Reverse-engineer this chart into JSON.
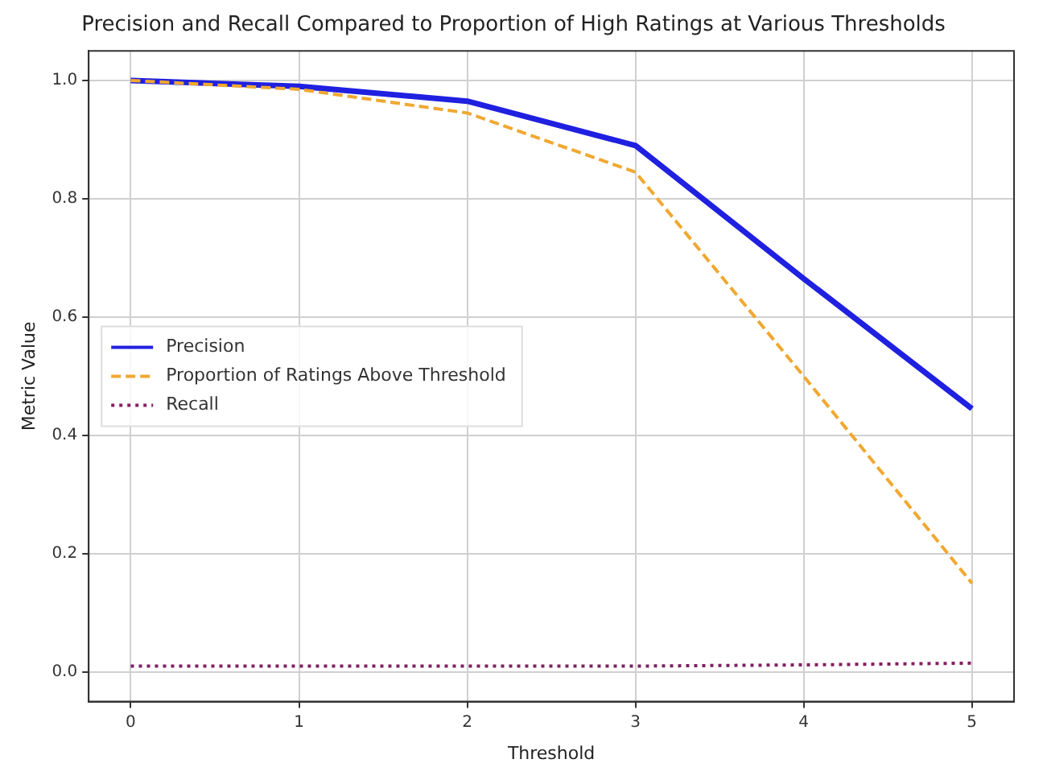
{
  "chart_data": {
    "type": "line",
    "title": "Precision and Recall Compared to Proportion of High Ratings at Various Thresholds",
    "xlabel": "Threshold",
    "ylabel": "Metric Value",
    "x": [
      0,
      1,
      2,
      3,
      4,
      5
    ],
    "series": [
      {
        "name": "Precision",
        "color": "#2020e0",
        "line_style": "solid",
        "values": [
          1.0,
          0.99,
          0.965,
          0.89,
          0.665,
          0.445
        ]
      },
      {
        "name": "Proportion of Ratings Above Threshold",
        "color": "#f0a830",
        "line_style": "dashed",
        "values": [
          1.0,
          0.985,
          0.945,
          0.845,
          0.5,
          0.15
        ]
      },
      {
        "name": "Recall",
        "color": "#802060",
        "line_style": "dotted",
        "values": [
          0.01,
          0.01,
          0.01,
          0.01,
          0.012,
          0.015
        ]
      }
    ],
    "xlim": [
      -0.25,
      5.25
    ],
    "xticks": [
      0,
      1,
      2,
      3,
      4,
      5
    ],
    "ylim": [
      -0.05,
      1.05
    ],
    "yticks": [
      {
        "value": 0,
        "label": "0.0"
      },
      {
        "value": 0.2,
        "label": "0.2"
      },
      {
        "value": 0.4,
        "label": "0.4"
      },
      {
        "value": 0.6,
        "label": "0.6"
      },
      {
        "value": 0.8,
        "label": "0.8"
      },
      {
        "value": 1.0,
        "label": "1.0"
      }
    ],
    "grid": true,
    "legend": "left",
    "marker": "none"
  }
}
